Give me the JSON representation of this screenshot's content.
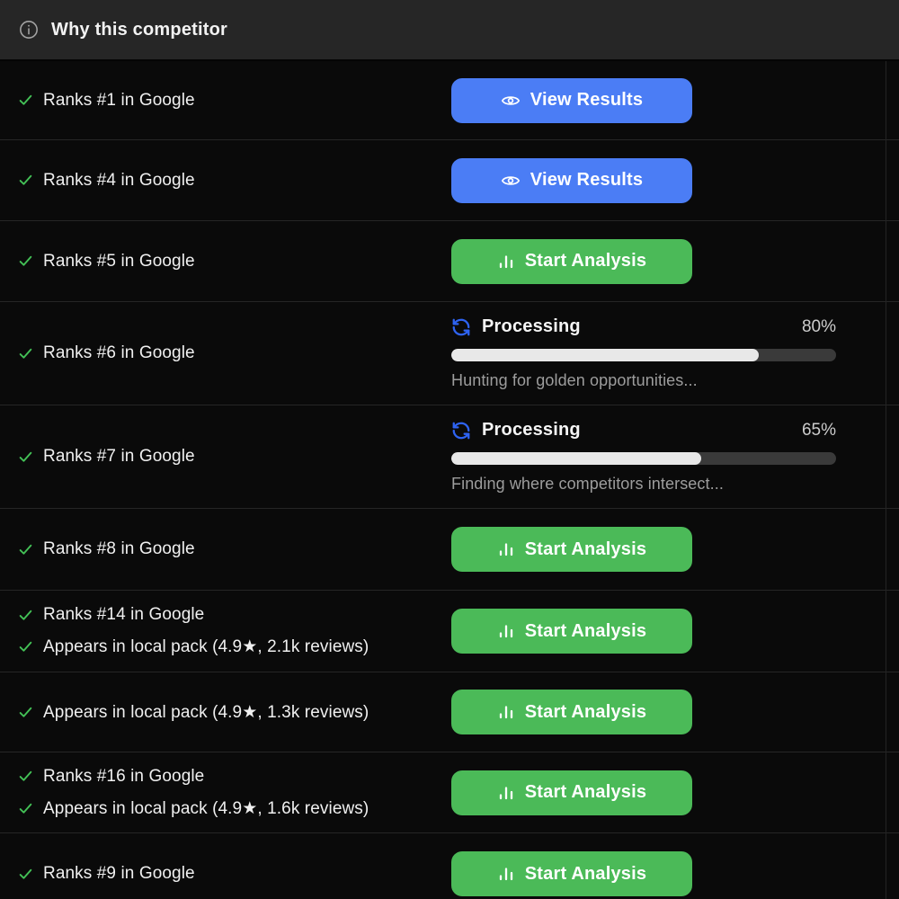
{
  "header": {
    "title": "Why this competitor"
  },
  "colors": {
    "header_bg": "#262626",
    "page_bg": "#0a0a0a",
    "accent_blue": "#4b7df5",
    "accent_green": "#4bba58",
    "check_green": "#43c056",
    "sync_blue": "#2e63f2",
    "progress_track": "#3a3a3a",
    "progress_fill": "#e8e8e8"
  },
  "rows": [
    {
      "reasons": [
        "Ranks #1 in Google"
      ],
      "action": {
        "type": "view",
        "label": "View Results"
      }
    },
    {
      "reasons": [
        "Ranks #4 in Google"
      ],
      "action": {
        "type": "view",
        "label": "View Results"
      }
    },
    {
      "reasons": [
        "Ranks #5 in Google"
      ],
      "action": {
        "type": "start",
        "label": "Start Analysis"
      }
    },
    {
      "reasons": [
        "Ranks #6 in Google"
      ],
      "action": {
        "type": "processing",
        "label": "Processing",
        "percent_text": "80%",
        "progress": 80,
        "status": "Hunting for golden opportunities..."
      }
    },
    {
      "reasons": [
        "Ranks #7 in Google"
      ],
      "action": {
        "type": "processing",
        "label": "Processing",
        "percent_text": "65%",
        "progress": 65,
        "status": "Finding where competitors intersect..."
      }
    },
    {
      "reasons": [
        "Ranks #8 in Google"
      ],
      "action": {
        "type": "start",
        "label": "Start Analysis"
      }
    },
    {
      "reasons": [
        "Ranks #14 in Google",
        "Appears in local pack (4.9★, 2.1k reviews)"
      ],
      "action": {
        "type": "start",
        "label": "Start Analysis"
      }
    },
    {
      "reasons": [
        "Appears in local pack (4.9★, 1.3k reviews)"
      ],
      "action": {
        "type": "start",
        "label": "Start Analysis"
      }
    },
    {
      "reasons": [
        "Ranks #16 in Google",
        "Appears in local pack (4.9★, 1.6k reviews)"
      ],
      "action": {
        "type": "start",
        "label": "Start Analysis"
      }
    },
    {
      "reasons": [
        "Ranks #9 in Google"
      ],
      "action": {
        "type": "start",
        "label": "Start Analysis"
      }
    }
  ]
}
